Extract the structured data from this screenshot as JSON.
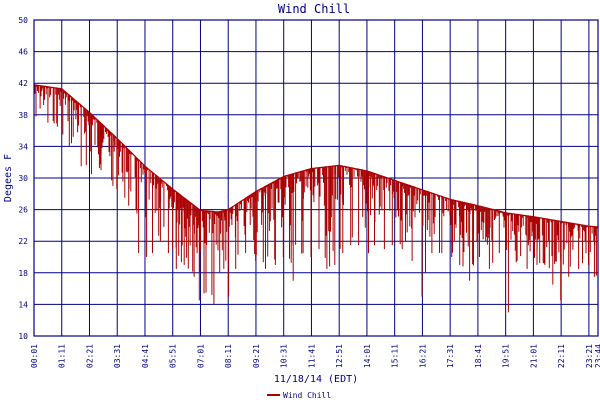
{
  "chart_data": {
    "type": "line",
    "title": "Wind Chill",
    "xlabel": "11/18/14 (EDT)",
    "ylabel": "Degees F",
    "ylim": [
      10,
      50
    ],
    "yticks": [
      "10",
      "14",
      "18",
      "22",
      "26",
      "30",
      "34",
      "38",
      "42",
      "46",
      "50"
    ],
    "xticks": [
      "00:01",
      "01:11",
      "02:21",
      "03:31",
      "04:41",
      "05:51",
      "07:01",
      "08:11",
      "09:21",
      "10:31",
      "11:41",
      "12:51",
      "14:01",
      "15:11",
      "16:21",
      "17:31",
      "18:41",
      "19:51",
      "21:01",
      "22:11",
      "23:21",
      "23:44"
    ],
    "grid": true,
    "legend": "bottom-center",
    "colors": {
      "series": "#aa0000",
      "grid": "#000080",
      "title": "#000080"
    },
    "series": [
      {
        "name": "Wind Chill",
        "upper_envelope": {
          "x": [
            "00:01",
            "01:11",
            "02:21",
            "03:31",
            "04:41",
            "05:51",
            "07:01",
            "07:46",
            "08:11",
            "09:21",
            "10:31",
            "11:41",
            "12:51",
            "14:01",
            "15:11",
            "16:21",
            "17:31",
            "18:41",
            "19:51",
            "21:01",
            "22:11",
            "23:21",
            "23:44"
          ],
          "y": [
            41.8,
            41.3,
            38.3,
            35.0,
            31.5,
            28.6,
            25.9,
            25.7,
            26.0,
            28.3,
            30.2,
            31.2,
            31.6,
            30.9,
            29.7,
            28.5,
            27.3,
            26.5,
            25.6,
            25.1,
            24.5,
            23.9,
            23.8
          ]
        },
        "dips": {
          "x": [
            "00:06",
            "00:36",
            "01:00",
            "01:30",
            "02:00",
            "02:26",
            "02:50",
            "03:20",
            "03:50",
            "04:00",
            "04:25",
            "04:45",
            "05:00",
            "05:20",
            "05:40",
            "06:00",
            "06:20",
            "06:45",
            "06:58",
            "07:15",
            "07:35",
            "08:00",
            "08:12",
            "08:30",
            "08:55",
            "09:20",
            "09:45",
            "10:10",
            "10:30",
            "10:55",
            "11:20",
            "11:40",
            "12:00",
            "12:20",
            "12:40",
            "13:00",
            "13:20",
            "13:40",
            "14:05",
            "14:20",
            "14:45",
            "15:05",
            "15:30",
            "15:55",
            "16:20",
            "16:45",
            "17:10",
            "17:35",
            "17:55",
            "18:20",
            "18:45",
            "19:10",
            "19:35",
            "19:58",
            "20:20",
            "20:45",
            "21:10",
            "21:30",
            "21:50",
            "22:10",
            "22:30",
            "22:55",
            "23:20",
            "23:35",
            "23:44"
          ],
          "y": [
            37.8,
            37.0,
            36.5,
            34.0,
            31.5,
            30.5,
            31.0,
            29.0,
            27.5,
            26.5,
            20.5,
            20.0,
            20.5,
            22.0,
            20.5,
            18.5,
            19.0,
            17.5,
            14.5,
            15.5,
            14.0,
            18.5,
            15.0,
            18.5,
            20.5,
            19.5,
            18.5,
            19.0,
            20.0,
            17.0,
            20.5,
            20.0,
            21.0,
            18.5,
            19.0,
            20.5,
            21.5,
            21.5,
            20.5,
            21.5,
            21.0,
            21.5,
            21.0,
            19.5,
            15.0,
            20.5,
            20.5,
            20.0,
            19.0,
            17.0,
            20.0,
            18.5,
            20.5,
            13.0,
            19.5,
            18.5,
            19.0,
            19.0,
            16.5,
            14.5,
            17.5,
            18.5,
            19.0,
            17.5,
            16.0
          ]
        }
      }
    ]
  }
}
